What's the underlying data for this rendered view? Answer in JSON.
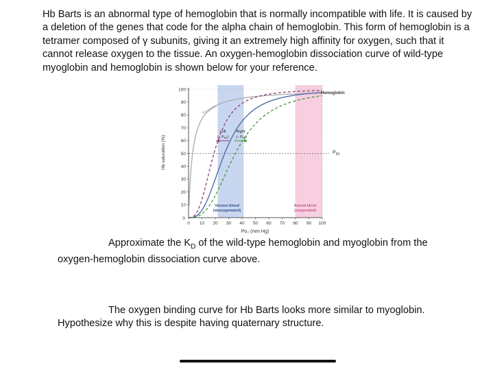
{
  "document": {
    "paragraph": "Hb Barts is an abnormal type of hemoglobin that is normally incompatible with life. It is caused by a deletion of the genes that code for the alpha chain of hemoglobin. This form of hemoglobin is a tetramer composed of γ subunits, giving it an extremely high affinity for oxygen, such that it cannot release oxygen to the tissue. An oxygen-hemoglobin dissociation curve of wild-type myoglobin and hemoglobin is shown below for your reference.",
    "question1_line1": "Approximate the K",
    "question1_sub": "D",
    "question1_line1_rest": " of the wild-type hemoglobin and myoglobin from the",
    "question1_line2": "oxygen-hemoglobin dissociation curve above.",
    "question2_line1": "The oxygen binding curve for Hb Barts looks more similar to myoglobin.",
    "question2_line2": "Hypothesize why this is despite having quaternary structure."
  },
  "chart_data": {
    "type": "line",
    "xlabel": "Po₂ (mm Hg)",
    "ylabel": "Hb saturation (%)",
    "xlim": [
      0,
      100
    ],
    "ylim": [
      0,
      100
    ],
    "x_ticks": [
      0,
      10,
      20,
      30,
      40,
      50,
      60,
      70,
      80,
      90,
      100
    ],
    "y_ticks": [
      10,
      20,
      30,
      40,
      50,
      60,
      70,
      80,
      90,
      100
    ],
    "zero_label": "0",
    "series": [
      {
        "name": "Myoglobin",
        "style": "solid",
        "color": "#b0b0b0",
        "p50": 3,
        "n": 1
      },
      {
        "name": "Hemoglobin",
        "style": "solid",
        "color": "#4a6fa8",
        "p50": 27,
        "n": 2.8
      },
      {
        "name": "",
        "style": "dashed",
        "color": "#8b3a78",
        "p50": 19,
        "n": 2.8
      },
      {
        "name": "",
        "style": "dashed",
        "color": "#3e9a3a",
        "p50": 35,
        "n": 2.8
      }
    ],
    "regions": [
      {
        "label1": "Venous blood",
        "label2": "(deoxygenated)",
        "x_start": 22,
        "x_end": 41,
        "color": "#c9d6ef"
      },
      {
        "label1": "Arterial blood",
        "label2": "(oxygenated)",
        "x_start": 80,
        "x_end": 100,
        "color": "#f7cfe0"
      }
    ],
    "p50_label": "P",
    "p50_sub": "50",
    "p50_value": 50,
    "shift_left_label1": "Left",
    "shift_left_label2": "(↓ P",
    "shift_left_sub": "50",
    "shift_left_end": ")",
    "shift_right_label1": "Right",
    "shift_right_label2": "(↑ P",
    "shift_right_sub": "50",
    "shift_right_end": ")",
    "curve_label_myoglobin": "Myoglobin",
    "curve_label_hemoglobin": "Hemoglobin"
  }
}
